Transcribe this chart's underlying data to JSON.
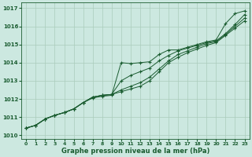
{
  "title": "Graphe pression niveau de la mer (hPa)",
  "xlabel": "Graphe pression niveau de la mer (hPa)",
  "bg_color": "#cce8e0",
  "grid_color": "#aaccbb",
  "line_color": "#1a5c30",
  "xlim": [
    -0.5,
    23.5
  ],
  "ylim": [
    1009.8,
    1017.3
  ],
  "yticks": [
    1010,
    1011,
    1012,
    1013,
    1014,
    1015,
    1016,
    1017
  ],
  "xticks": [
    0,
    1,
    2,
    3,
    4,
    5,
    6,
    7,
    8,
    9,
    10,
    11,
    12,
    13,
    14,
    15,
    16,
    17,
    18,
    19,
    20,
    21,
    22,
    23
  ],
  "series": [
    [
      1010.4,
      1010.55,
      1010.9,
      1011.1,
      1011.25,
      1011.45,
      1011.8,
      1012.1,
      1012.2,
      1012.25,
      1012.4,
      1012.55,
      1012.7,
      1013.0,
      1013.5,
      1014.0,
      1014.3,
      1014.55,
      1014.75,
      1014.95,
      1015.1,
      1015.5,
      1015.9,
      1016.3
    ],
    [
      1010.4,
      1010.55,
      1010.9,
      1011.1,
      1011.25,
      1011.45,
      1011.8,
      1012.1,
      1012.2,
      1012.25,
      1012.5,
      1012.7,
      1012.9,
      1013.2,
      1013.65,
      1014.1,
      1014.45,
      1014.65,
      1014.85,
      1015.05,
      1015.15,
      1015.55,
      1016.0,
      1016.45
    ],
    [
      1010.4,
      1010.55,
      1010.9,
      1011.1,
      1011.25,
      1011.45,
      1011.8,
      1012.1,
      1012.2,
      1012.25,
      1013.0,
      1013.3,
      1013.5,
      1013.7,
      1014.1,
      1014.4,
      1014.65,
      1014.8,
      1014.95,
      1015.1,
      1015.2,
      1015.6,
      1016.1,
      1016.65
    ],
    [
      1010.4,
      1010.55,
      1010.9,
      1011.1,
      1011.25,
      1011.45,
      1011.8,
      1012.05,
      1012.15,
      1012.2,
      1014.0,
      1013.95,
      1014.0,
      1014.05,
      1014.45,
      1014.7,
      1014.7,
      1014.85,
      1015.0,
      1015.15,
      1015.25,
      1016.15,
      1016.7,
      1016.85
    ]
  ]
}
